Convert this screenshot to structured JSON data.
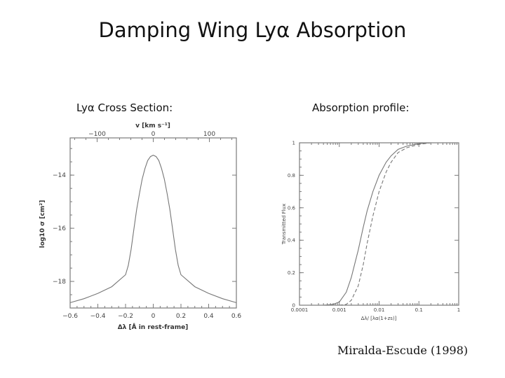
{
  "slide": {
    "title": "Damping Wing Lyα Absorption",
    "left_heading": "Lyα Cross Section:",
    "right_heading": "Absorption profile:",
    "credit": "Miralda-Escude (1998)"
  },
  "chart_data": [
    {
      "type": "line",
      "xlabel": "Δλ [Å in rest-frame]",
      "ylabel": "log10 σ [cm²]",
      "top_axis_label": "v [km s⁻¹]",
      "xlim": [
        -0.6,
        0.6
      ],
      "ylim": [
        -19.0,
        -12.6
      ],
      "x_ticks": [
        "−0.6",
        "−0.4",
        "−0.2",
        "0",
        "0.2",
        "0.4",
        "0.6"
      ],
      "y_ticks": [
        "−14",
        "−16",
        "−18"
      ],
      "top_ticks": [
        "−100",
        "0",
        "100"
      ],
      "series": [
        {
          "x": [
            -0.6,
            -0.5,
            -0.4,
            -0.3,
            -0.2,
            -0.18,
            -0.16,
            -0.14,
            -0.12,
            -0.1,
            -0.08,
            -0.06,
            -0.04,
            -0.02,
            0,
            0.02,
            0.04,
            0.06,
            0.08,
            0.1,
            0.12,
            0.14,
            0.16,
            0.18,
            0.2,
            0.3,
            0.4,
            0.5,
            0.6
          ],
          "y": [
            -18.8,
            -18.65,
            -18.45,
            -18.2,
            -17.75,
            -17.4,
            -16.8,
            -16.05,
            -15.3,
            -14.7,
            -14.15,
            -13.75,
            -13.45,
            -13.3,
            -13.25,
            -13.3,
            -13.45,
            -13.75,
            -14.15,
            -14.7,
            -15.3,
            -16.05,
            -16.8,
            -17.4,
            -17.75,
            -18.2,
            -18.45,
            -18.65,
            -18.8
          ]
        }
      ]
    },
    {
      "type": "line",
      "xlabel": "Δλ/ [λα(1+zs)]",
      "ylabel": "Transmitted Flux",
      "x_scale": "log",
      "xlim": [
        0.0001,
        1
      ],
      "ylim": [
        0,
        1
      ],
      "x_ticks": [
        "0.0001",
        "0.001",
        "0.01",
        "0.1",
        "1"
      ],
      "y_ticks": [
        "0",
        "0.2",
        "0.4",
        "0.6",
        "0.8",
        "1"
      ],
      "series": [
        {
          "style": "solid",
          "x": [
            0.0004,
            0.0007,
            0.001,
            0.0015,
            0.002,
            0.003,
            0.004,
            0.005,
            0.007,
            0.01,
            0.015,
            0.02,
            0.03,
            0.05,
            0.1,
            0.2,
            1
          ],
          "y": [
            0.0,
            0.005,
            0.02,
            0.08,
            0.17,
            0.34,
            0.48,
            0.58,
            0.7,
            0.8,
            0.88,
            0.92,
            0.96,
            0.98,
            0.995,
            1.0,
            1.0
          ]
        },
        {
          "style": "dashed",
          "x": [
            0.001,
            0.0015,
            0.002,
            0.003,
            0.004,
            0.005,
            0.007,
            0.01,
            0.015,
            0.02,
            0.03,
            0.05,
            0.1,
            0.2,
            1
          ],
          "y": [
            0.0,
            0.005,
            0.03,
            0.12,
            0.25,
            0.38,
            0.55,
            0.7,
            0.82,
            0.88,
            0.94,
            0.97,
            0.99,
            1.0,
            1.0
          ]
        }
      ]
    }
  ]
}
